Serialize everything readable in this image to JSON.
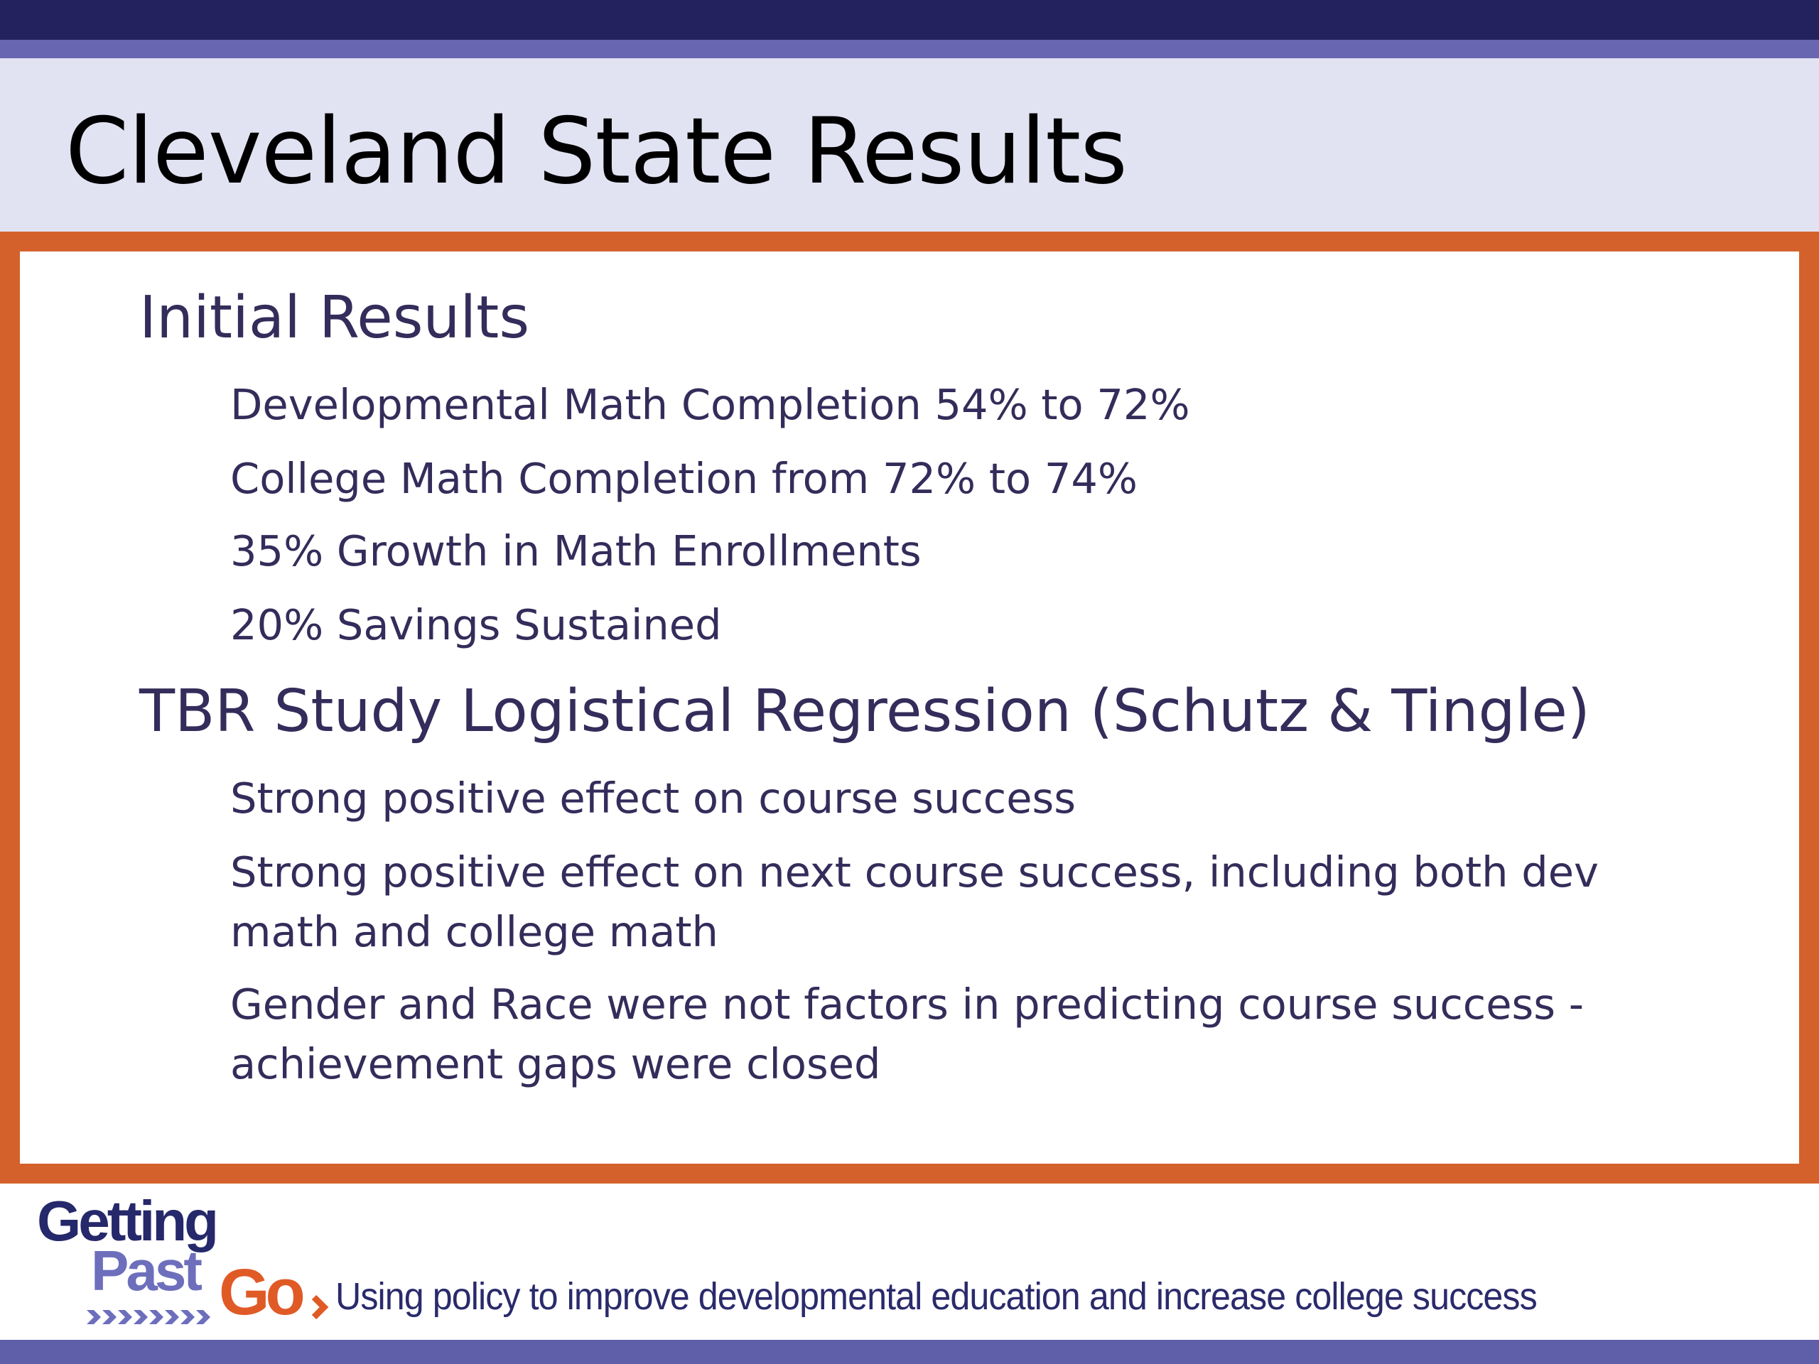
{
  "slide": {
    "title": "Cleveland State Results"
  },
  "sections": [
    {
      "heading": "Initial Results",
      "items": [
        "Developmental Math Completion 54% to 72%",
        "College Math Completion from 72% to 74%",
        "35% Growth in Math Enrollments",
        "20% Savings Sustained"
      ]
    },
    {
      "heading": "TBR Study Logistical Regression (Schutz & Tingle)",
      "items": [
        "Strong positive effect on course success",
        "Strong positive effect on next course success, including both dev math and college math",
        "Gender and Race were not factors in predicting course success - achievement gaps were closed"
      ]
    }
  ],
  "footer": {
    "logo_text": "Getting Past Go",
    "tagline": "Using policy to improve developmental education and increase college success"
  },
  "colors": {
    "frame": "#d4612b",
    "top_bar": "#24225e",
    "accent_bar": "#6866b0",
    "title_band": "#e2e3f2",
    "text": "#342c5a",
    "logo_orange": "#e05a26"
  }
}
